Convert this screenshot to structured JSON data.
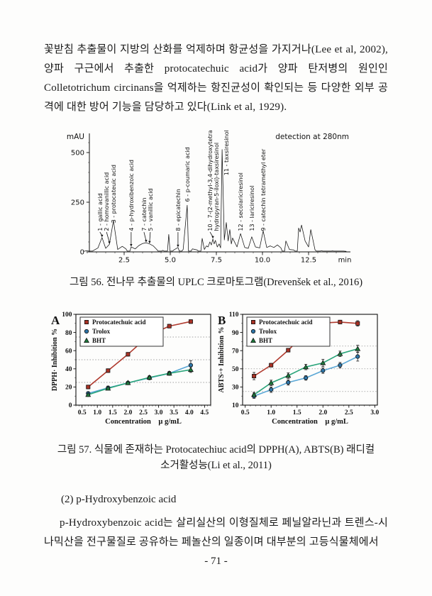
{
  "page": {
    "paragraph_top": "꽃받침 추출물이 지방의 산화를 억제하며 항균성을 가지거나(Lee et al, 2002), 양파 구근에서 추출한 protocatechuic acid가 양파 탄저병의 원인인 Colletotrichum circinans을 억제하는 항진균성이 확인되는 등 다양한 외부 공격에 대한 방어 기능을 담당하고 있다(Link et al, 1929).",
    "fig56_caption": "그림 56. 전나무 추출물의 UPLC 크로마토그램(Drevenšek et al., 2016)",
    "fig57_caption_line1": "그림 57. 식물에 존재하는 Protocatechiuc acid의 DPPH(A), ABTS(B) 래디컬",
    "fig57_caption_line2": "소거활성능(Li et al., 2011)",
    "section_heading": "(2) p-Hydroxybenzoic acid",
    "paragraph_bottom": "p-Hydroxybenzoic acid는 살리실산의 이형질체로 페닐알라닌과 트렌스-시나믹산을 전구물질로 공유하는 페놀산의 일종이며 대부분의 고등식물체에서",
    "page_number": "- 71 -"
  },
  "chart_data": [
    {
      "type": "line",
      "kind": "chromatogram",
      "detector_label": "detection at 280nm",
      "ylabel": "mAU",
      "xlabel": "min",
      "yticks": [
        0,
        250,
        500
      ],
      "xticks": [
        2.5,
        5.0,
        7.5,
        10.0,
        12.5
      ],
      "xlim": [
        0,
        15
      ],
      "ylim": [
        0,
        570
      ],
      "peaks": [
        {
          "name": "1 - gallic acid",
          "t": 1.3,
          "mAU": 72,
          "dx": -3
        },
        {
          "name": "2 - homovanillic acid",
          "t": 1.7,
          "mAU": 38,
          "dx": -4
        },
        {
          "name": "3 - protocateuic acid",
          "t": 1.92,
          "mAU": 158,
          "base": 145
        },
        {
          "name": "4 - p-hydroxibenzoic acid",
          "t": 2.88,
          "mAU": 25
        },
        {
          "name": "7 - catechin",
          "t": 3.69,
          "mAU": 46,
          "dx": -3
        },
        {
          "name": "5 - vanillic acid",
          "t": 3.88,
          "mAU": 40,
          "dx": 1
        },
        {
          "name": "8 - epicatechin",
          "t": 5.42,
          "mAU": 22
        },
        {
          "name": "6 - p-coumaric acid",
          "t": 5.92,
          "mAU": 235,
          "base": 252
        },
        {
          "name": "10 - 7-(2-methyl-3,4-dihydroxytetra",
          "name2": "hydropyran-5-iloxi)-taxsiresinol",
          "t": 7.31,
          "mAU": 65,
          "dx": -4
        },
        {
          "name": "11 - taxsiresinol",
          "t": 7.81,
          "mAU": 515,
          "base": 385,
          "dx": 6
        },
        {
          "name": "12 - secolariciresinol",
          "t": 8.81,
          "mAU": 92
        },
        {
          "name": "13 - lariciresinol",
          "t": 9.42,
          "mAU": 76
        },
        {
          "name": "9 - catechin tetramethyl eter",
          "t": 10.04,
          "mAU": 106
        }
      ],
      "trace": [
        [
          0.5,
          6
        ],
        [
          0.85,
          8
        ],
        [
          1.08,
          20
        ],
        [
          1.3,
          72
        ],
        [
          1.5,
          18
        ],
        [
          1.7,
          38
        ],
        [
          1.92,
          158
        ],
        [
          2.15,
          12
        ],
        [
          2.4,
          28
        ],
        [
          2.6,
          15
        ],
        [
          2.88,
          25
        ],
        [
          3.1,
          15
        ],
        [
          3.3,
          32
        ],
        [
          3.5,
          42
        ],
        [
          3.69,
          46
        ],
        [
          3.88,
          40
        ],
        [
          4.08,
          30
        ],
        [
          4.27,
          12
        ],
        [
          4.6,
          8
        ],
        [
          4.92,
          88
        ],
        [
          5.2,
          10
        ],
        [
          5.42,
          22
        ],
        [
          5.7,
          12
        ],
        [
          5.92,
          235
        ],
        [
          6.2,
          15
        ],
        [
          6.45,
          10
        ],
        [
          6.73,
          68
        ],
        [
          6.85,
          12
        ],
        [
          6.96,
          30
        ],
        [
          7.05,
          25
        ],
        [
          7.15,
          50
        ],
        [
          7.23,
          35
        ],
        [
          7.31,
          65
        ],
        [
          7.38,
          40
        ],
        [
          7.45,
          58
        ],
        [
          7.55,
          25
        ],
        [
          7.65,
          40
        ],
        [
          7.73,
          20
        ],
        [
          7.81,
          515
        ],
        [
          7.93,
          60
        ],
        [
          8.04,
          148
        ],
        [
          8.14,
          55
        ],
        [
          8.23,
          112
        ],
        [
          8.31,
          40
        ],
        [
          8.38,
          70
        ],
        [
          8.62,
          25
        ],
        [
          8.81,
          92
        ],
        [
          9.04,
          22
        ],
        [
          9.23,
          18
        ],
        [
          9.42,
          76
        ],
        [
          9.62,
          25
        ],
        [
          9.85,
          20
        ],
        [
          10.04,
          106
        ],
        [
          10.23,
          22
        ],
        [
          10.42,
          30
        ],
        [
          10.62,
          22
        ],
        [
          10.81,
          35
        ],
        [
          11.0,
          20
        ],
        [
          11.27,
          55
        ],
        [
          11.46,
          12
        ],
        [
          11.69,
          10
        ],
        [
          11.96,
          120
        ],
        [
          12.04,
          100
        ],
        [
          12.12,
          135
        ],
        [
          12.31,
          55
        ],
        [
          12.5,
          25
        ],
        [
          12.62,
          112
        ],
        [
          12.85,
          10
        ],
        [
          13.2,
          6
        ],
        [
          13.8,
          5
        ],
        [
          14.4,
          4
        ]
      ]
    },
    {
      "type": "line",
      "panel_label": "A",
      "ylabel": "DPPH· Inhibition %",
      "xlabel": "Concentration    μ g/mL",
      "xlim": [
        0.3,
        4.7
      ],
      "ylim": [
        0,
        100
      ],
      "xticks": [
        0.5,
        1.0,
        1.5,
        2.0,
        2.5,
        3.0,
        3.5,
        4.0,
        4.5
      ],
      "yticks": [
        0,
        20,
        40,
        60,
        80,
        100
      ],
      "gridlines_y": [
        25,
        50,
        75
      ],
      "legend_position": "top-left",
      "x": [
        0.7,
        1.35,
        2.0,
        2.7,
        3.35,
        4.05
      ],
      "series": [
        {
          "name": "Protocatechuic acid",
          "marker": "square",
          "line_color": "#b03a2e",
          "fill_color": "#a93226",
          "values": [
            20,
            38,
            56,
            77,
            87,
            92
          ],
          "err": [
            2,
            2,
            2,
            4,
            2,
            2
          ]
        },
        {
          "name": "Trolox",
          "marker": "circle",
          "line_color": "#5aa7d6",
          "fill_color": "#2e75a8",
          "values": [
            13,
            19,
            24.5,
            30,
            35,
            44
          ],
          "err": [
            1.5,
            2,
            1.5,
            2,
            2,
            5
          ]
        },
        {
          "name": "BHT",
          "marker": "triangle",
          "line_color": "#2aa57a",
          "fill_color": "#1e7a3c",
          "values": [
            11.5,
            18.5,
            24.5,
            30.5,
            35,
            39
          ],
          "err": [
            2,
            1.5,
            1.5,
            2,
            2,
            3
          ]
        }
      ]
    },
    {
      "type": "line",
      "panel_label": "B",
      "ylabel": "ABTS·+ Inhibition %",
      "xlabel": "Concentration    μ g/mL",
      "xlim": [
        0.45,
        3.05
      ],
      "ylim": [
        10,
        110
      ],
      "xticks": [
        0.5,
        1.0,
        1.5,
        2.0,
        2.5,
        3.0
      ],
      "yticks": [
        10,
        30,
        50,
        70,
        90,
        110
      ],
      "gridlines_y": [
        25,
        50,
        75
      ],
      "legend_position": "top-left",
      "x": [
        0.67,
        1.0,
        1.33,
        1.67,
        2.0,
        2.33,
        2.67
      ],
      "series": [
        {
          "name": "Protocatechuic acid",
          "marker": "square",
          "line_color": "#b03a2e",
          "fill_color": "#a93226",
          "values": [
            42,
            54,
            70.5,
            89.5,
            100.5,
            101.5,
            100
          ],
          "err": [
            4,
            2,
            2,
            3,
            2,
            2,
            3
          ]
        },
        {
          "name": "Trolox",
          "marker": "circle",
          "line_color": "#5aa7d6",
          "fill_color": "#2e75a8",
          "values": [
            20,
            27,
            35,
            40,
            48,
            54,
            63.5
          ],
          "err": [
            2.5,
            3,
            3,
            2.5,
            3,
            3,
            5
          ]
        },
        {
          "name": "BHT",
          "marker": "triangle",
          "line_color": "#2aa57a",
          "fill_color": "#1e7a3c",
          "values": [
            21.5,
            34.5,
            42.5,
            52,
            56.5,
            66.5,
            72
          ],
          "err": [
            2.5,
            3,
            3,
            3,
            4,
            3,
            4
          ]
        }
      ]
    }
  ]
}
